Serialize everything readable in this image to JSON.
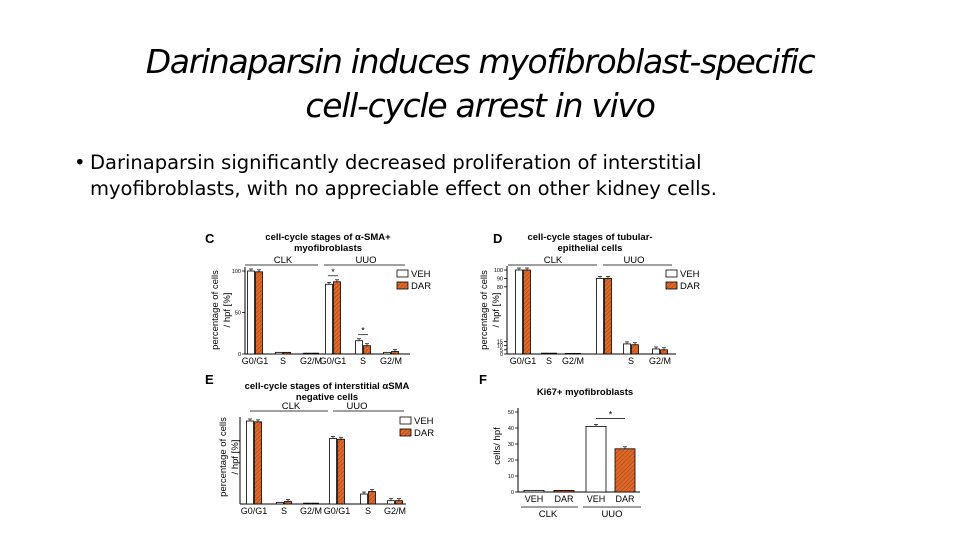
{
  "slide": {
    "title_line1": "Darinaparsin induces myofibroblast-specific",
    "title_line2": "cell-cycle arrest in vivo",
    "bullet_symbol": "•",
    "bullet_line1": "Darinaparsin significantly decreased proliferation of interstitial",
    "bullet_line2": "myofibroblasts, with no appreciable effect on other kidney cells."
  },
  "colors": {
    "veh": "#ffffff",
    "dar": "#e0692a",
    "axis": "#000000"
  },
  "chart_data": [
    {
      "panel": "C",
      "type": "bar",
      "title_lines": [
        "cell-cycle stages of α-SMA+",
        "myofibroblasts"
      ],
      "ylabel_lines": [
        "percentage of cells",
        "/ hpf [%]"
      ],
      "ylim": [
        0,
        100
      ],
      "yticks": [
        0,
        50,
        100
      ],
      "categories": [
        "G0/G1",
        "S",
        "G2/M",
        "G0/G1",
        "S",
        "G2/M"
      ],
      "groups": [
        "CLK",
        "UUO"
      ],
      "legend": [
        "VEH",
        "DAR"
      ],
      "series": [
        {
          "name": "VEH",
          "values": [
            100,
            2,
            1,
            84,
            16,
            2
          ]
        },
        {
          "name": "DAR",
          "values": [
            99,
            2,
            1,
            87,
            10,
            3
          ]
        }
      ],
      "annotations": [
        {
          "text": "*",
          "category": 3
        },
        {
          "text": "*",
          "category": 4
        }
      ]
    },
    {
      "panel": "D",
      "type": "bar",
      "title_lines": [
        "cell-cycle stages of tubular-",
        "epithelial cells"
      ],
      "ylabel_lines": [
        "percentage of cells",
        "/ hpf [%]"
      ],
      "ylim": [
        0,
        100
      ],
      "yticks": [
        0,
        5,
        10,
        15,
        80,
        90,
        100
      ],
      "categories": [
        "G0/G1",
        "S",
        "G2/M",
        "",
        "S",
        "G2/M"
      ],
      "groups": [
        "CLK",
        "UUO"
      ],
      "legend": [
        "VEH",
        "DAR"
      ],
      "series": [
        {
          "name": "VEH",
          "values": [
            100,
            1,
            0,
            90,
            12,
            6
          ]
        },
        {
          "name": "DAR",
          "values": [
            100,
            1,
            0,
            90,
            11,
            5
          ]
        }
      ],
      "annotations": []
    },
    {
      "panel": "E",
      "type": "bar",
      "title_lines": [
        "cell-cycle stages of interstitial αSMA",
        "negative cells"
      ],
      "ylabel_lines": [
        "percentage of cells",
        "/ hpf [%]"
      ],
      "ylim": [
        0,
        100
      ],
      "yticks": [],
      "categories": [
        "G0/G1",
        "S",
        "G2/M",
        "G0/G1",
        "S",
        "G2/M"
      ],
      "groups": [
        "CLK",
        "UUO"
      ],
      "legend": [
        "VEH",
        "DAR"
      ],
      "series": [
        {
          "name": "VEH",
          "values": [
            100,
            2,
            1,
            79,
            12,
            4
          ]
        },
        {
          "name": "DAR",
          "values": [
            99,
            3,
            1,
            78,
            15,
            4
          ]
        }
      ],
      "annotations": []
    },
    {
      "panel": "F",
      "type": "bar",
      "title_lines": [
        "Ki67+ myofibroblasts"
      ],
      "ylabel_lines": [
        "cells/ hpf"
      ],
      "ylim": [
        0,
        50
      ],
      "yticks": [
        0,
        10,
        20,
        30,
        40,
        50
      ],
      "categories": [
        "VEH",
        "DAR",
        "VEH",
        "DAR"
      ],
      "groups": [
        "CLK",
        "UUO"
      ],
      "legend": [],
      "series": [
        {
          "name": "",
          "values": [
            1,
            1,
            41,
            27
          ]
        }
      ],
      "annotations": [
        {
          "text": "*",
          "category": 2
        }
      ]
    }
  ]
}
